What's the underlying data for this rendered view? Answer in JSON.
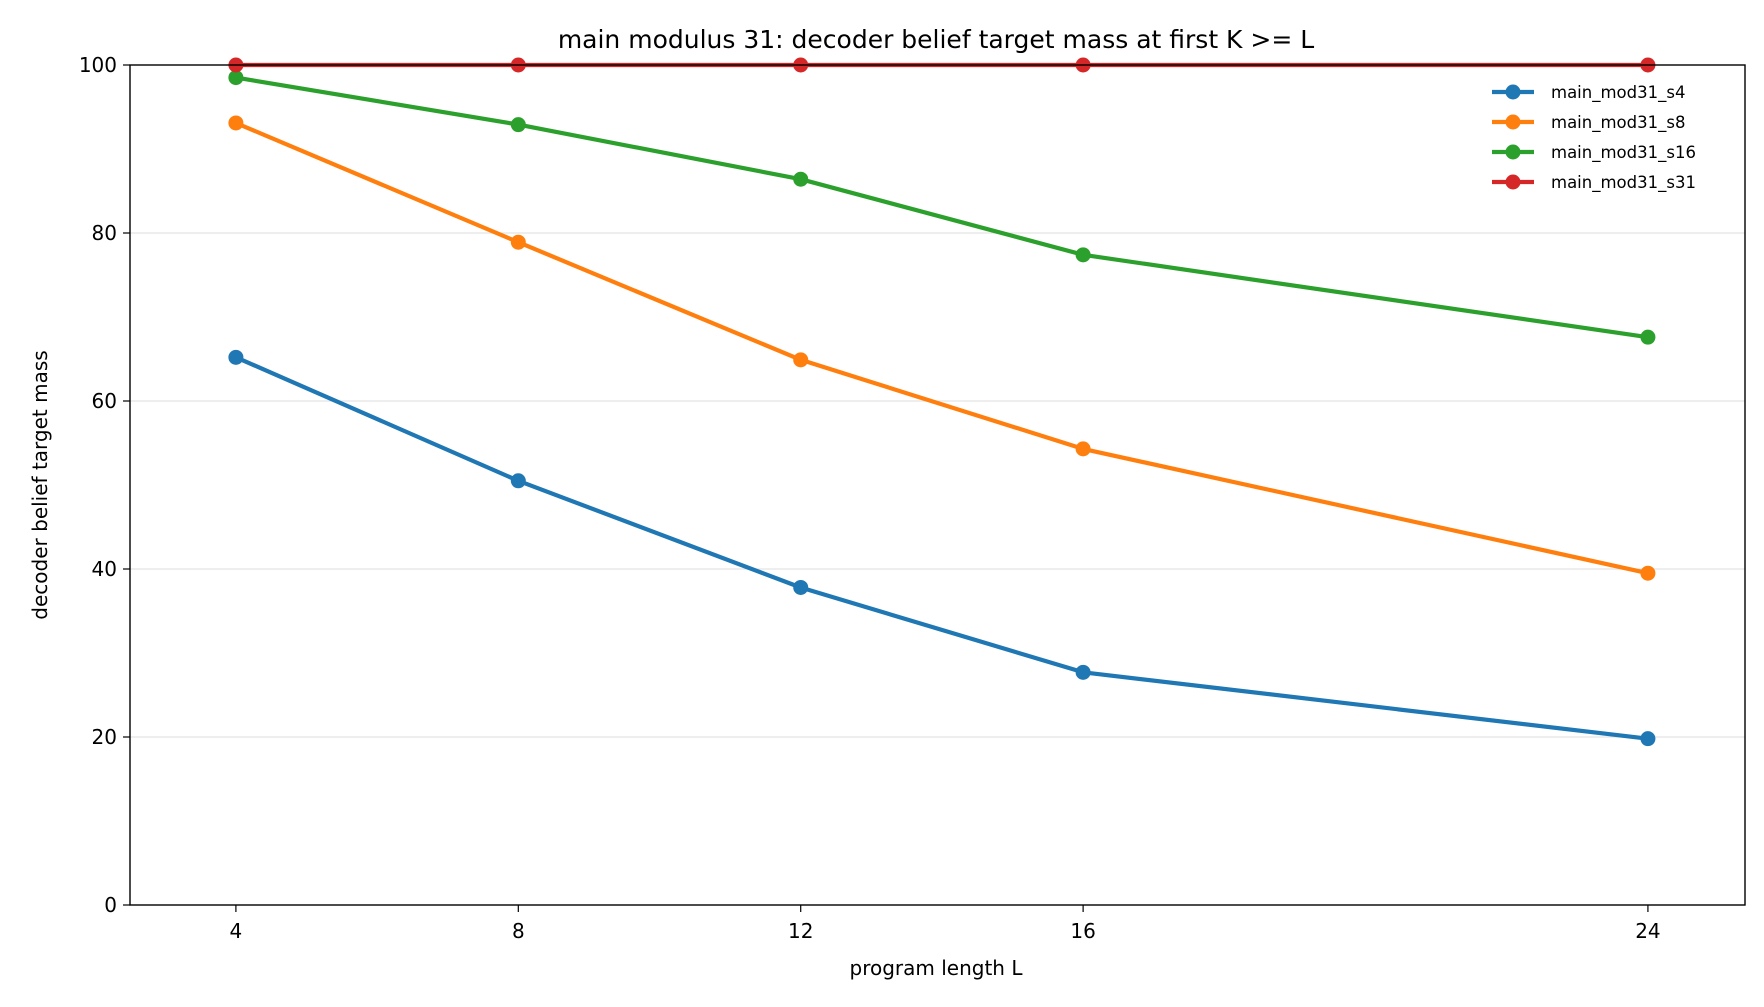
{
  "chart_data": {
    "type": "line",
    "title": "main modulus 31: decoder belief target mass at first K >= L",
    "xlabel": "program length L",
    "ylabel": "decoder belief target mass",
    "x": [
      4,
      8,
      12,
      16,
      24
    ],
    "xticks": [
      "4",
      "8",
      "12",
      "16",
      "24"
    ],
    "ylim": [
      0,
      100
    ],
    "yticks": [
      "0",
      "20",
      "40",
      "60",
      "80",
      "100"
    ],
    "grid": "horizontal",
    "legend_position": "top-right",
    "series": [
      {
        "name": "main_mod31_s4",
        "color": "#1f77b4",
        "values": [
          65.2,
          50.5,
          37.8,
          27.7,
          19.8
        ]
      },
      {
        "name": "main_mod31_s8",
        "color": "#ff7f0e",
        "values": [
          93.1,
          78.9,
          64.9,
          54.3,
          39.5
        ]
      },
      {
        "name": "main_mod31_s16",
        "color": "#2ca02c",
        "values": [
          98.5,
          92.9,
          86.4,
          77.4,
          67.6
        ]
      },
      {
        "name": "main_mod31_s31",
        "color": "#d62728",
        "values": [
          100,
          100,
          100,
          100,
          100
        ]
      }
    ]
  }
}
